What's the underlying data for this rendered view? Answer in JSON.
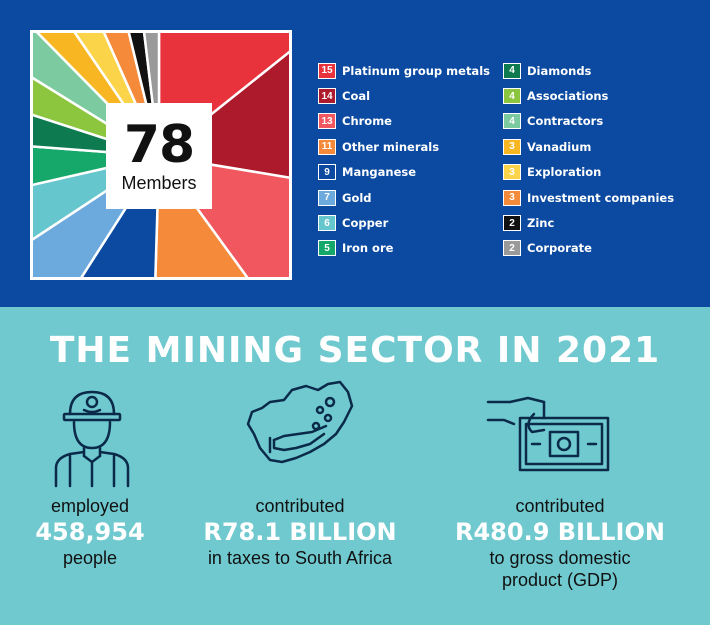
{
  "members": {
    "count": "78",
    "label": "Members"
  },
  "legend": [
    {
      "count": "15",
      "label": "Platinum group metals",
      "color": "#e8323c"
    },
    {
      "count": "14",
      "label": "Coal",
      "color": "#ad1a2b"
    },
    {
      "count": "13",
      "label": "Chrome",
      "color": "#f0575f"
    },
    {
      "count": "11",
      "label": "Other minerals",
      "color": "#f58a3b"
    },
    {
      "count": "9",
      "label": "Manganese",
      "color": "#0b4aa0"
    },
    {
      "count": "7",
      "label": "Gold",
      "color": "#6ca9dc"
    },
    {
      "count": "6",
      "label": "Copper",
      "color": "#66c6cd"
    },
    {
      "count": "5",
      "label": "Iron ore",
      "color": "#16a86a"
    },
    {
      "count": "4",
      "label": "Diamonds",
      "color": "#0e7a50"
    },
    {
      "count": "4",
      "label": "Associations",
      "color": "#8cc63e"
    },
    {
      "count": "4",
      "label": "Contractors",
      "color": "#7ccaa0"
    },
    {
      "count": "3",
      "label": "Vanadium",
      "color": "#f7b622"
    },
    {
      "count": "3",
      "label": "Exploration",
      "color": "#fcd44a"
    },
    {
      "count": "3",
      "label": "Investment companies",
      "color": "#f58a3b"
    },
    {
      "count": "2",
      "label": "Zinc",
      "color": "#111111"
    },
    {
      "count": "2",
      "label": "Corporate",
      "color": "#9a9a9a"
    }
  ],
  "headline": "THE MINING SECTOR IN 2021",
  "stats": {
    "employed": {
      "pre": "employed",
      "value": "458,954",
      "post": "people",
      "icon": "miner-icon"
    },
    "taxes": {
      "pre": "contributed",
      "value": "R78.1 BILLION",
      "post": "in taxes to South Africa",
      "icon": "south-africa-map-icon"
    },
    "gdp": {
      "pre": "contributed",
      "value": "R480.9 BILLION",
      "post": "to gross domestic",
      "post2": "product (GDP)",
      "icon": "banknote-hand-icon"
    }
  },
  "colors": {
    "top_bg": "#0b4aa0",
    "bottom_bg": "#6fc9cf",
    "icon_stroke": "#0b2a4a"
  }
}
